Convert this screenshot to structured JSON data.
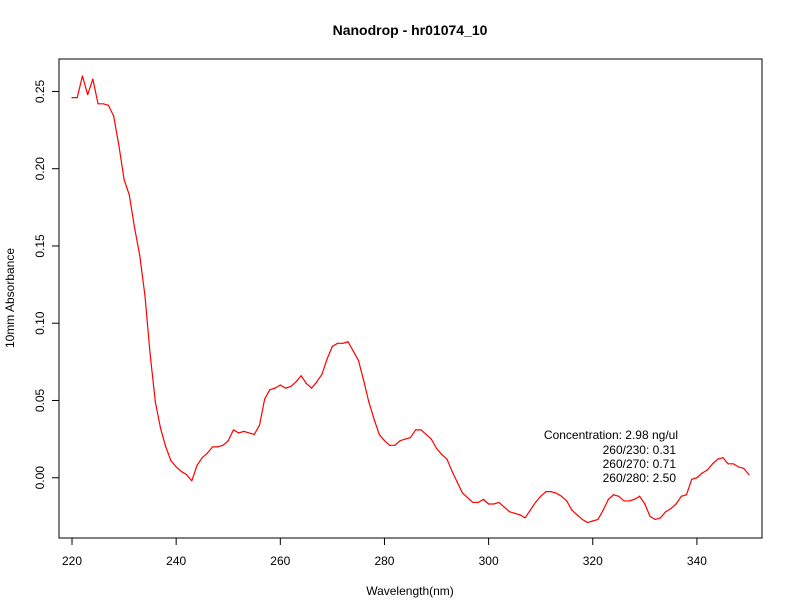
{
  "chart_data": {
    "type": "line",
    "title": "Nanodrop - hr01074_10",
    "xlabel": "Wavelength(nm)",
    "ylabel": "10mm Absorbance",
    "xlim": [
      217.5,
      352.5
    ],
    "ylim": [
      -0.039,
      0.271
    ],
    "x_ticks": [
      220,
      240,
      260,
      280,
      300,
      320,
      340
    ],
    "y_ticks": [
      0.0,
      0.05,
      0.1,
      0.15,
      0.2,
      0.25
    ],
    "x_tick_labels": [
      "220",
      "240",
      "260",
      "280",
      "300",
      "320",
      "340"
    ],
    "y_tick_labels": [
      "0.00",
      "0.05",
      "0.10",
      "0.15",
      "0.20",
      "0.25"
    ],
    "grid": false,
    "series": [
      {
        "color": "#ff0000",
        "x": [
          220,
          221,
          222,
          223,
          224,
          225,
          226,
          227,
          228,
          229,
          230,
          231,
          232,
          233,
          234,
          235,
          236,
          237,
          238,
          239,
          240,
          241,
          242,
          243,
          244,
          245,
          246,
          247,
          248,
          249,
          250,
          251,
          252,
          253,
          254,
          255,
          256,
          257,
          258,
          259,
          260,
          261,
          262,
          263,
          264,
          265,
          266,
          267,
          268,
          269,
          270,
          271,
          272,
          273,
          274,
          275,
          276,
          277,
          278,
          279,
          280,
          281,
          282,
          283,
          284,
          285,
          286,
          287,
          288,
          289,
          290,
          291,
          292,
          293,
          294,
          295,
          296,
          297,
          298,
          299,
          300,
          301,
          302,
          303,
          304,
          305,
          306,
          307,
          308,
          309,
          310,
          311,
          312,
          313,
          314,
          315,
          316,
          317,
          318,
          319,
          320,
          321,
          322,
          323,
          324,
          325,
          326,
          327,
          328,
          329,
          330,
          331,
          332,
          333,
          334,
          335,
          336,
          337,
          338,
          339,
          340,
          341,
          342,
          343,
          344,
          345,
          346,
          347,
          348,
          349,
          350
        ],
        "y": [
          0.246,
          0.246,
          0.26,
          0.248,
          0.258,
          0.242,
          0.242,
          0.241,
          0.234,
          0.215,
          0.193,
          0.183,
          0.162,
          0.144,
          0.118,
          0.08,
          0.049,
          0.032,
          0.02,
          0.011,
          0.007,
          0.004,
          0.002,
          -0.002,
          0.008,
          0.013,
          0.016,
          0.02,
          0.02,
          0.021,
          0.024,
          0.031,
          0.029,
          0.03,
          0.029,
          0.028,
          0.034,
          0.051,
          0.057,
          0.058,
          0.06,
          0.058,
          0.059,
          0.062,
          0.066,
          0.061,
          0.058,
          0.062,
          0.067,
          0.077,
          0.085,
          0.087,
          0.087,
          0.088,
          0.082,
          0.076,
          0.063,
          0.049,
          0.038,
          0.028,
          0.024,
          0.021,
          0.021,
          0.024,
          0.025,
          0.026,
          0.031,
          0.031,
          0.028,
          0.025,
          0.019,
          0.015,
          0.012,
          0.004,
          -0.003,
          -0.01,
          -0.013,
          -0.016,
          -0.016,
          -0.014,
          -0.017,
          -0.017,
          -0.016,
          -0.019,
          -0.022,
          -0.023,
          -0.024,
          -0.026,
          -0.021,
          -0.016,
          -0.012,
          -0.009,
          -0.009,
          -0.01,
          -0.012,
          -0.015,
          -0.021,
          -0.024,
          -0.027,
          -0.029,
          -0.028,
          -0.027,
          -0.021,
          -0.014,
          -0.011,
          -0.012,
          -0.015,
          -0.015,
          -0.014,
          -0.012,
          -0.017,
          -0.025,
          -0.027,
          -0.026,
          -0.022,
          -0.02,
          -0.017,
          -0.012,
          -0.011,
          -0.001,
          0.0,
          0.003,
          0.005,
          0.009,
          0.012,
          0.013,
          0.009,
          0.009,
          0.007,
          0.006,
          0.002
        ]
      }
    ],
    "annotation": {
      "concentration": "Concentration: 2.98 ng/ul",
      "ratio_230": "260/230: 0.31",
      "ratio_270": "260/270: 0.71",
      "ratio_280": "260/280: 2.50"
    }
  }
}
